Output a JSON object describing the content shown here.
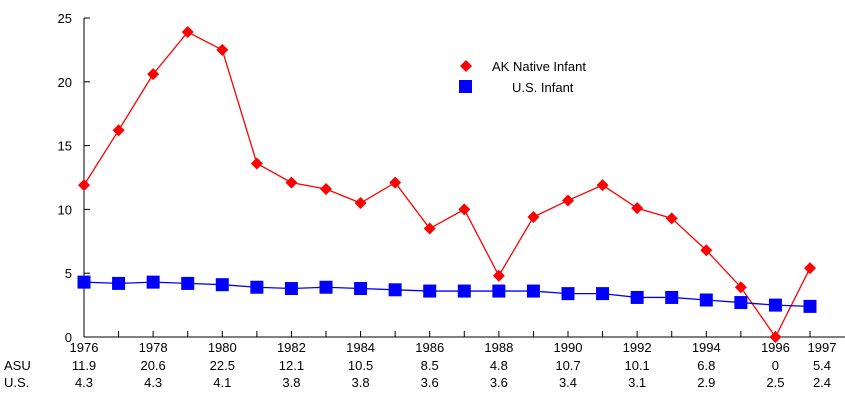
{
  "chart_data": {
    "type": "line",
    "title": "",
    "xlabel": "",
    "ylabel": "",
    "x": [
      1976,
      1977,
      1978,
      1979,
      1980,
      1981,
      1982,
      1983,
      1984,
      1985,
      1986,
      1987,
      1988,
      1989,
      1990,
      1991,
      1992,
      1993,
      1994,
      1995,
      1996,
      1997
    ],
    "xtick_labels": [
      "1976",
      "1978",
      "1980",
      "1982",
      "1984",
      "1986",
      "1988",
      "1990",
      "1992",
      "1994",
      "1996",
      "1997"
    ],
    "yticks": [
      "0",
      "5",
      "10",
      "15",
      "20",
      "25"
    ],
    "ylim": [
      0,
      25
    ],
    "grid": false,
    "legend_position": "top-right",
    "series": [
      {
        "name": "AK Native Infant",
        "color": "#ff0000",
        "marker": "diamond",
        "values": [
          11.9,
          16.2,
          20.6,
          23.9,
          22.5,
          13.6,
          12.1,
          11.6,
          10.5,
          12.1,
          8.5,
          10.0,
          4.8,
          9.4,
          10.7,
          11.9,
          10.1,
          9.3,
          6.8,
          3.9,
          0,
          5.4
        ]
      },
      {
        "name": "U.S. Infant",
        "color": "#0000ff",
        "marker": "square",
        "values": [
          4.3,
          4.2,
          4.3,
          4.2,
          4.1,
          3.9,
          3.8,
          3.9,
          3.8,
          3.7,
          3.6,
          3.6,
          3.6,
          3.6,
          3.4,
          3.4,
          3.1,
          3.1,
          2.9,
          2.7,
          2.5,
          2.4
        ]
      }
    ],
    "table": {
      "rows": [
        {
          "label": "ASU",
          "values": [
            "11.9",
            "20.6",
            "22.5",
            "12.1",
            "10.5",
            "8.5",
            "4.8",
            "10.7",
            "10.1",
            "6.8",
            "0",
            "5.4"
          ]
        },
        {
          "label": "U.S.",
          "values": [
            "4.3",
            "4.3",
            "4.1",
            "3.8",
            "3.8",
            "3.6",
            "3.6",
            "3.4",
            "3.1",
            "2.9",
            "2.5",
            "2.4"
          ]
        }
      ]
    }
  }
}
